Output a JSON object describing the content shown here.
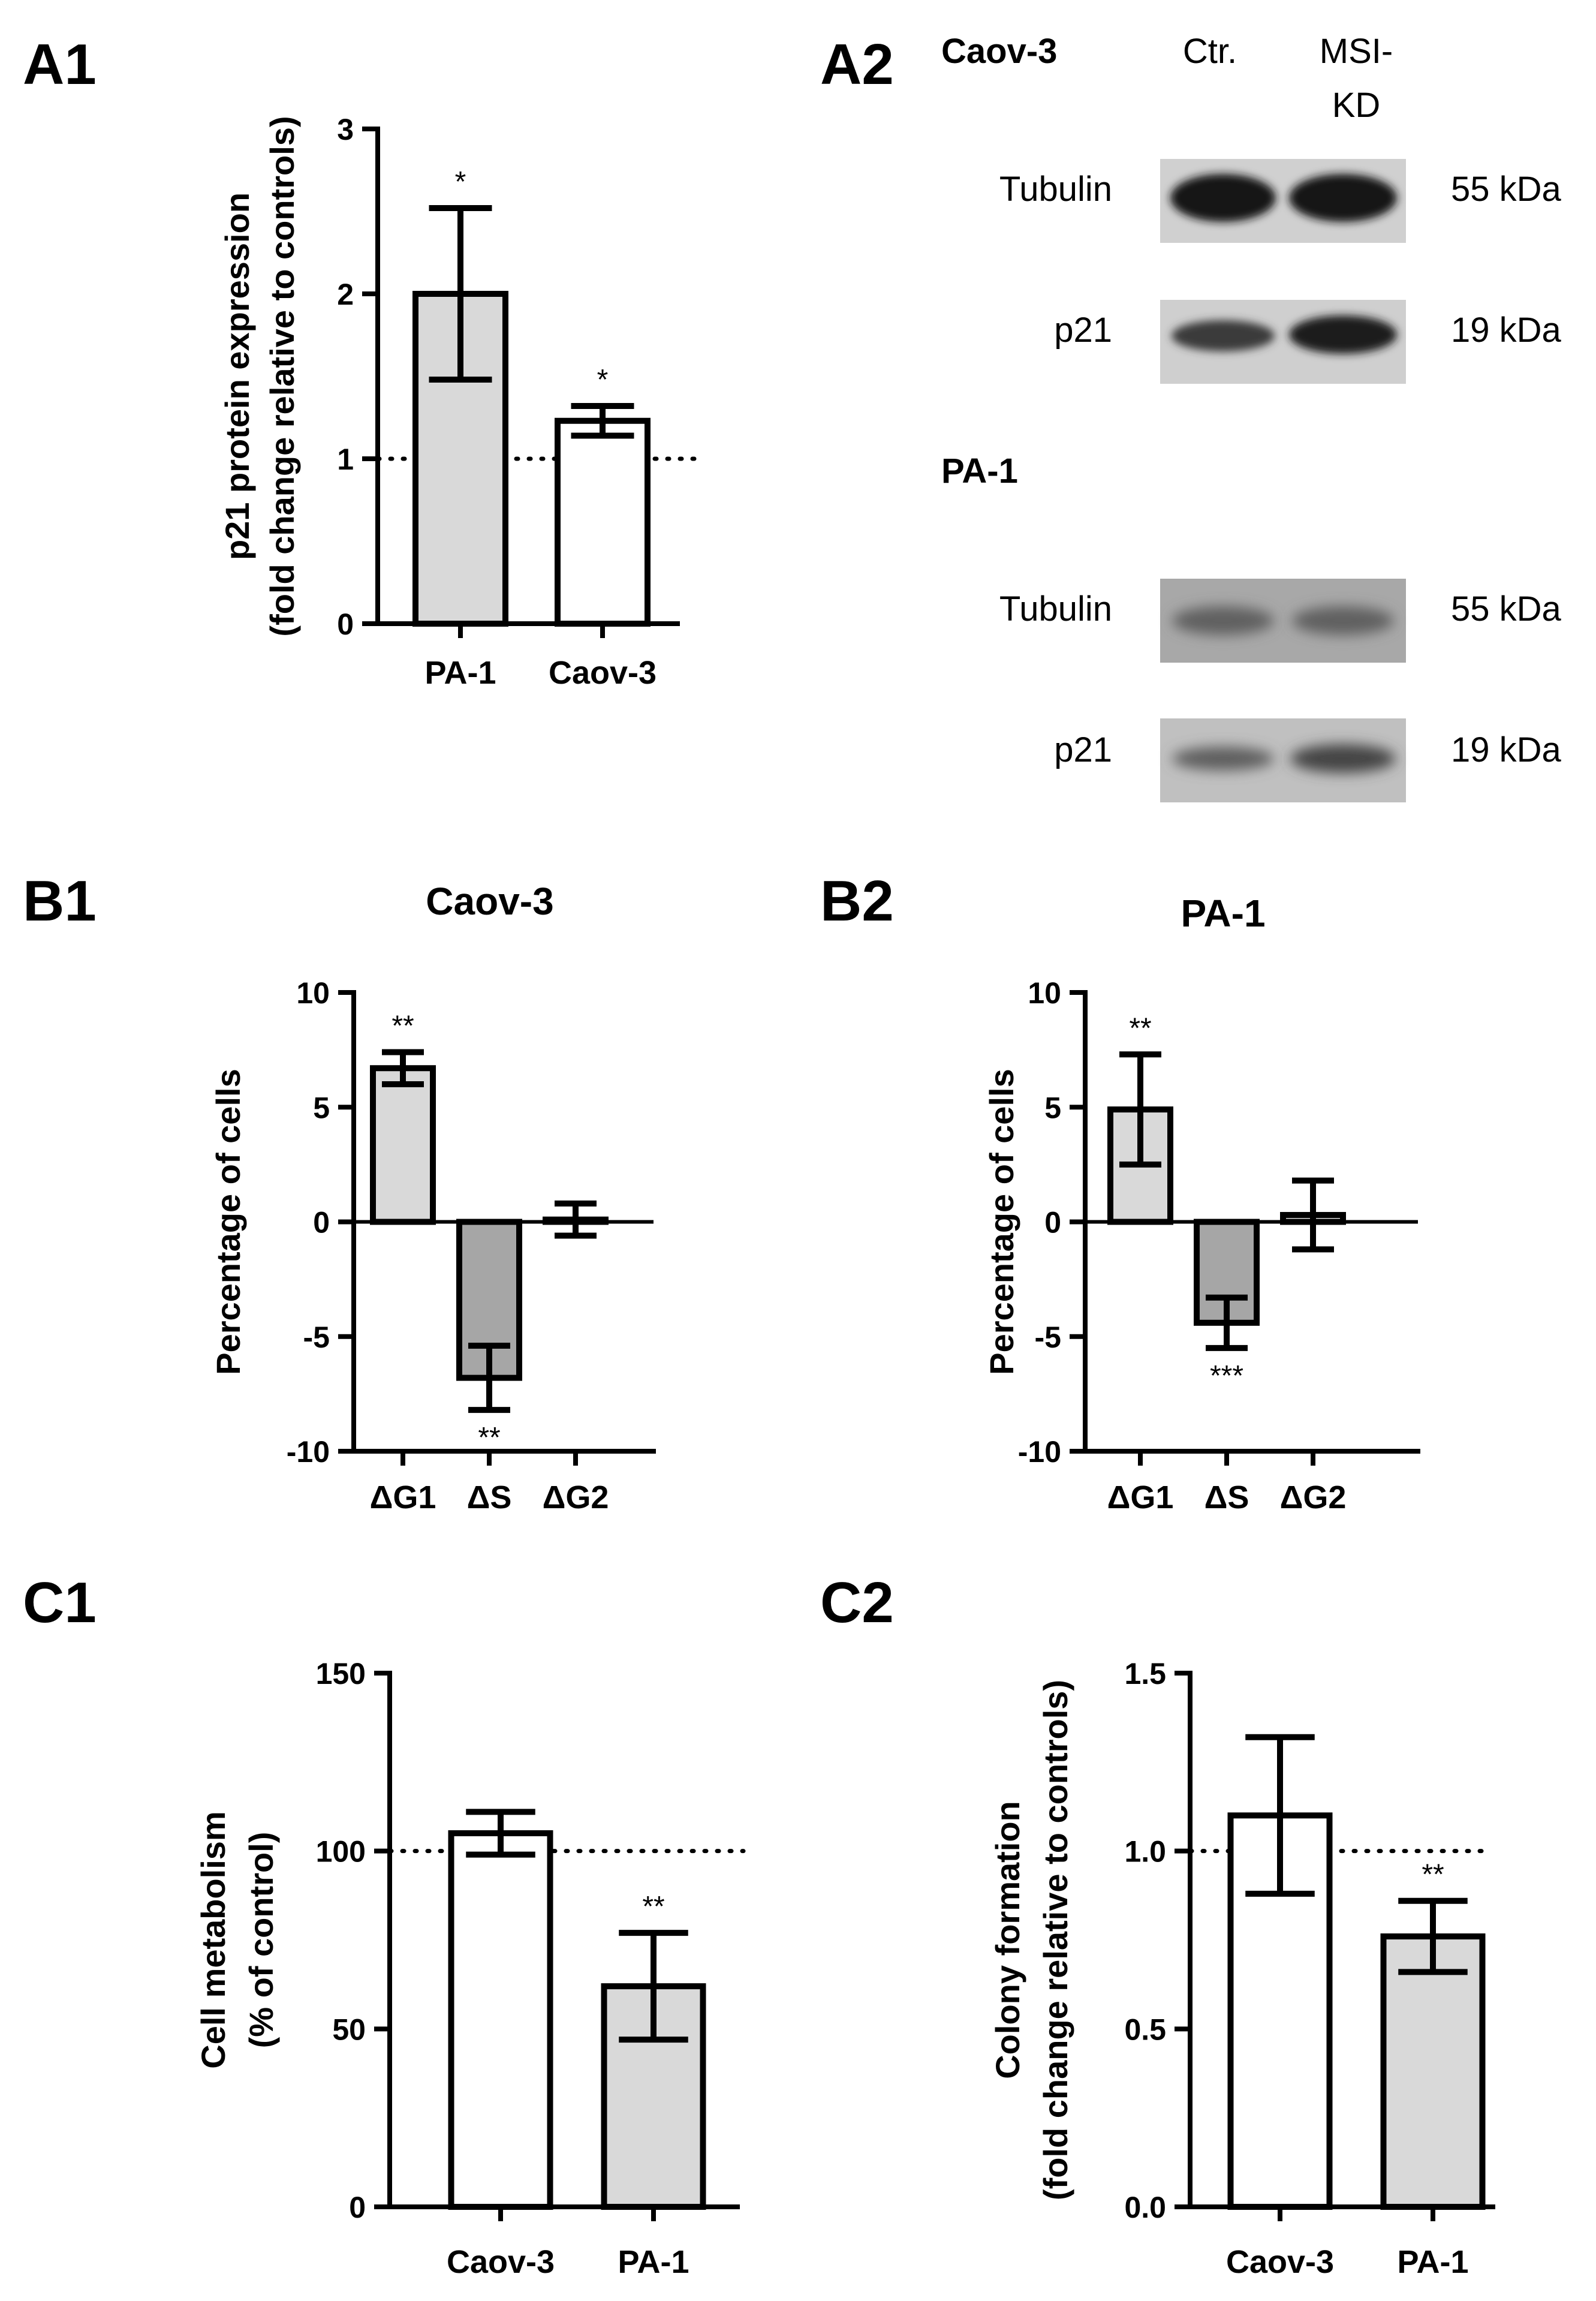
{
  "panel_labels": {
    "a1": "A1",
    "a2": "A2",
    "b1": "B1",
    "b2": "B2",
    "c1": "C1",
    "c2": "C2"
  },
  "colors": {
    "light_gray": "#d9d9d9",
    "mid_gray": "#a6a6a6",
    "white": "#ffffff",
    "black": "#000000"
  },
  "chart_data": [
    {
      "id": "A1",
      "type": "bar",
      "title": "",
      "ylabel_lines": [
        "p21 protein expression",
        "(fold change relative to controls)"
      ],
      "categories": [
        "PA-1",
        "Caov-3"
      ],
      "values": [
        2.0,
        1.23
      ],
      "errors": [
        0.52,
        0.09
      ],
      "fills": [
        "#d9d9d9",
        "#ffffff"
      ],
      "significance": [
        "*",
        "*"
      ],
      "ylim": [
        0,
        3
      ],
      "yticks": [
        0,
        1,
        2,
        3
      ],
      "ytick_labels": [
        "0",
        "1",
        "2",
        "3"
      ],
      "reference_line": 1
    },
    {
      "id": "B1",
      "type": "bar",
      "title": "Caov-3",
      "ylabel_lines": [
        "Percentage of cells"
      ],
      "categories": [
        "ΔG1",
        "ΔS",
        "ΔG2"
      ],
      "values": [
        6.7,
        -6.8,
        0.1
      ],
      "errors": [
        0.7,
        1.4,
        0.7
      ],
      "fills": [
        "#d9d9d9",
        "#a6a6a6",
        "#d9d9d9"
      ],
      "significance": [
        "**",
        "**",
        ""
      ],
      "ylim": [
        -10,
        10
      ],
      "yticks": [
        -10,
        -5,
        0,
        5,
        10
      ],
      "ytick_labels": [
        "-10",
        "-5",
        "0",
        "5",
        "10"
      ]
    },
    {
      "id": "B2",
      "type": "bar",
      "title": "PA-1",
      "ylabel_lines": [
        "Percentage of cells"
      ],
      "categories": [
        "ΔG1",
        "ΔS",
        "ΔG2"
      ],
      "values": [
        4.9,
        -4.4,
        0.3
      ],
      "errors": [
        2.4,
        1.1,
        1.5
      ],
      "fills": [
        "#d9d9d9",
        "#a6a6a6",
        "#d9d9d9"
      ],
      "significance": [
        "**",
        "***",
        ""
      ],
      "ylim": [
        -10,
        10
      ],
      "yticks": [
        -10,
        -5,
        0,
        5,
        10
      ],
      "ytick_labels": [
        "-10",
        "-5",
        "0",
        "5",
        "10"
      ]
    },
    {
      "id": "C1",
      "type": "bar",
      "title": "",
      "ylabel_lines": [
        "Cell metabolism",
        "(% of control)"
      ],
      "categories": [
        "Caov-3",
        "PA-1"
      ],
      "values": [
        105,
        62
      ],
      "errors": [
        6,
        15
      ],
      "fills": [
        "#ffffff",
        "#d9d9d9"
      ],
      "significance": [
        "",
        "**"
      ],
      "ylim": [
        0,
        150
      ],
      "yticks": [
        0,
        50,
        100,
        150
      ],
      "ytick_labels": [
        "0",
        "50",
        "100",
        "150"
      ],
      "reference_line": 100
    },
    {
      "id": "C2",
      "type": "bar",
      "title": "",
      "ylabel_lines": [
        "Colony formation",
        "(fold change relative to controls)"
      ],
      "categories": [
        "Caov-3",
        "PA-1"
      ],
      "values": [
        1.1,
        0.76
      ],
      "errors": [
        0.22,
        0.1
      ],
      "fills": [
        "#ffffff",
        "#d9d9d9"
      ],
      "significance": [
        "",
        "**"
      ],
      "ylim": [
        0,
        1.5
      ],
      "yticks": [
        0,
        0.5,
        1,
        1.5
      ],
      "ytick_labels": [
        "0.0",
        "0.5",
        "1.0",
        "1.5"
      ],
      "reference_line": 1
    }
  ],
  "western_blot": {
    "col_headers": {
      "ctr": "Ctr.",
      "msi_kd_1": "MSI-",
      "msi_kd_2": "KD"
    },
    "caov3": {
      "label": "Caov-3",
      "tubulin": "Tubulin",
      "tubulin_kda": "55 kDa",
      "p21": "p21",
      "p21_kda": "19 kDa"
    },
    "pa1": {
      "label": "PA-1",
      "tubulin": "Tubulin",
      "tubulin_kda": "55 kDa",
      "p21": "p21",
      "p21_kda": "19 kDa"
    }
  }
}
